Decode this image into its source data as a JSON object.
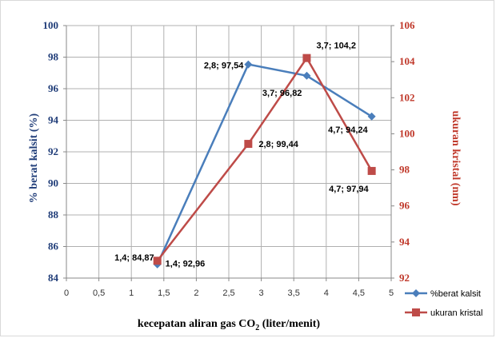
{
  "chart_data": {
    "type": "line",
    "xlabel": "kecepatan aliran gas CO",
    "xlabel_sub": "2",
    "xlabel_suffix": " (liter/menit)",
    "ylabel_left": "% berat kalsit (%)",
    "ylabel_right": "ukuran kristal (nm)",
    "xlim": [
      0,
      5
    ],
    "x_ticks": [
      "0",
      "0,5",
      "1",
      "1,5",
      "2",
      "2,5",
      "3",
      "3,5",
      "4",
      "4,5",
      "5"
    ],
    "ylim_left": [
      84,
      100
    ],
    "y_ticks_left": [
      "84",
      "86",
      "88",
      "90",
      "92",
      "94",
      "96",
      "98",
      "100"
    ],
    "ylim_right": [
      92,
      106
    ],
    "y_ticks_right": [
      "92",
      "94",
      "96",
      "98",
      "100",
      "102",
      "104",
      "106"
    ],
    "grid": true,
    "legend_position": "bottom-right",
    "series": [
      {
        "name": "%berat kalsit",
        "axis": "left",
        "color": "#4a7ebb",
        "marker": "diamond",
        "x": [
          1.4,
          2.8,
          3.7,
          4.7
        ],
        "y": [
          84.87,
          97.54,
          96.82,
          94.24
        ],
        "labels": [
          "1,4; 84,87",
          "2,8; 97,54",
          "3,7; 96,82",
          "4,7; 94,24"
        ]
      },
      {
        "name": "ukuran kristal",
        "axis": "right",
        "color": "#be4b48",
        "marker": "square",
        "x": [
          1.4,
          2.8,
          3.7,
          4.7
        ],
        "y": [
          92.96,
          99.44,
          104.2,
          97.94
        ],
        "labels": [
          "1,4; 92,96",
          "2,8; 99,44",
          "3,7; 104,2",
          "4,7; 97,94"
        ]
      }
    ],
    "colors": {
      "left_axis": "#1f3c78",
      "right_axis": "#c0392b",
      "grid": "#b0b0b0"
    }
  }
}
